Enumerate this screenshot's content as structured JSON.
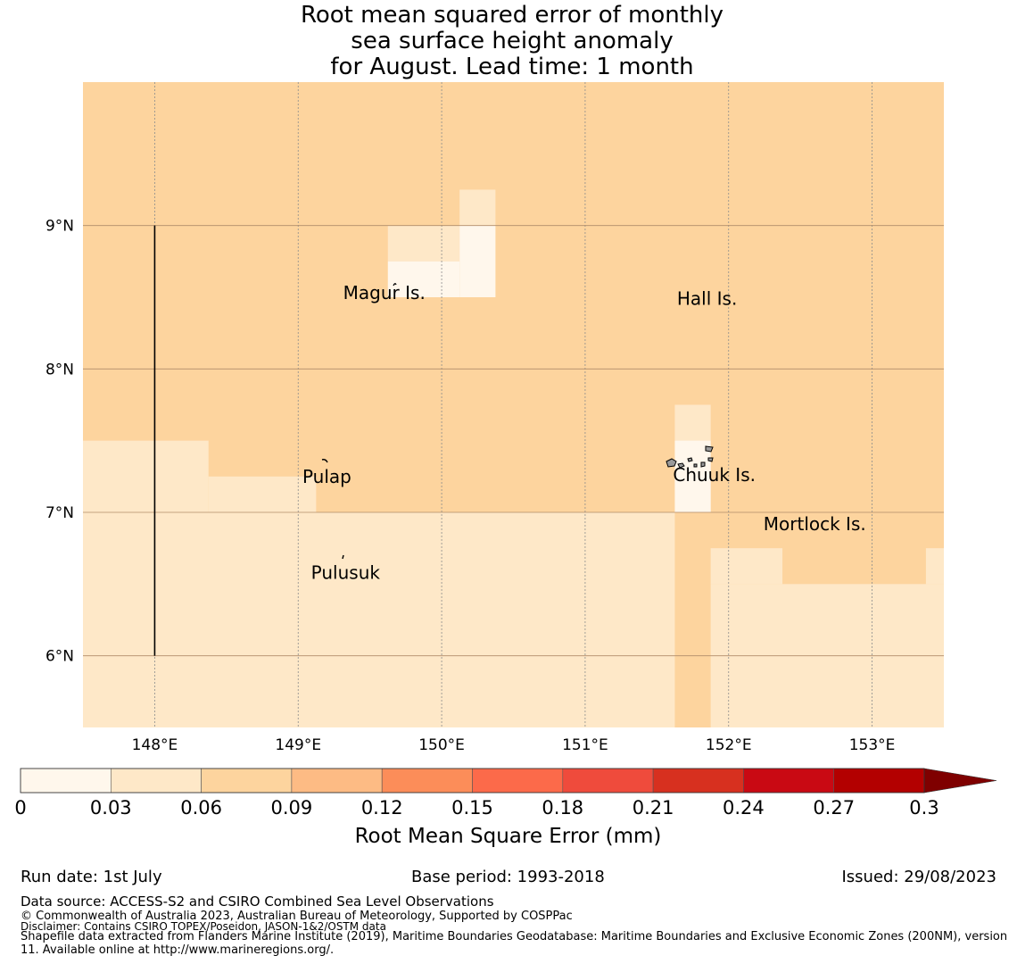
{
  "title_lines": [
    "Root mean squared error of monthly",
    "sea surface height anomaly",
    "for August. Lead time: 1 month"
  ],
  "map": {
    "lon_range": [
      147.5,
      153.5
    ],
    "lat_range": [
      5.5,
      10.0
    ],
    "lon_ticks": [
      148,
      149,
      150,
      151,
      152,
      153
    ],
    "lon_tick_labels": [
      "148°E",
      "149°E",
      "150°E",
      "151°E",
      "152°E",
      "153°E"
    ],
    "lat_ticks": [
      6,
      7,
      8,
      9
    ],
    "lat_tick_labels": [
      "6°N",
      "7°N",
      "8°N",
      "9°N"
    ],
    "grid": true,
    "base_class_color": "#fdd49e",
    "regions": [
      {
        "class_color": "#fee8c8",
        "lon": [
          147.5,
          148.375
        ],
        "lat": [
          7.0,
          7.5
        ]
      },
      {
        "class_color": "#fee8c8",
        "lon": [
          148.375,
          149.125
        ],
        "lat": [
          7.0,
          7.25
        ]
      },
      {
        "class_color": "#fee8c8",
        "lon": [
          147.5,
          151.625
        ],
        "lat": [
          5.5,
          7.0
        ]
      },
      {
        "class_color": "#fee8c8",
        "lon": [
          151.625,
          151.875
        ],
        "lat": [
          7.0,
          7.75
        ]
      },
      {
        "class_color": "#fff7ec",
        "lon": [
          151.625,
          151.875
        ],
        "lat": [
          7.0,
          7.5
        ]
      },
      {
        "class_color": "#fee8c8",
        "lon": [
          151.875,
          153.5
        ],
        "lat": [
          5.5,
          6.5
        ]
      },
      {
        "class_color": "#fee8c8",
        "lon": [
          151.875,
          152.375
        ],
        "lat": [
          6.5,
          6.75
        ]
      },
      {
        "class_color": "#fee8c8",
        "lon": [
          153.375,
          153.5
        ],
        "lat": [
          6.5,
          6.75
        ]
      },
      {
        "class_color": "#fee8c8",
        "lon": [
          149.625,
          150.125
        ],
        "lat": [
          8.75,
          9.0
        ]
      },
      {
        "class_color": "#fee8c8",
        "lon": [
          150.125,
          150.375
        ],
        "lat": [
          9.0,
          9.25
        ]
      },
      {
        "class_color": "#fff7ec",
        "lon": [
          150.125,
          150.375
        ],
        "lat": [
          8.5,
          9.0
        ]
      },
      {
        "class_color": "#fff7ec",
        "lon": [
          149.625,
          150.125
        ],
        "lat": [
          8.5,
          8.75
        ]
      }
    ],
    "boundary_line": {
      "lon": 148.0,
      "lat": [
        6.0,
        9.0
      ]
    },
    "place_labels": [
      {
        "name": "Magur Is.",
        "lon": 149.6,
        "lat": 8.53
      },
      {
        "name": "Hall Is.",
        "lon": 151.85,
        "lat": 8.49
      },
      {
        "name": "Pulap",
        "lon": 149.2,
        "lat": 7.25
      },
      {
        "name": "Chuuk Is.",
        "lon": 151.9,
        "lat": 7.26
      },
      {
        "name": "Mortlock Is.",
        "lon": 152.6,
        "lat": 6.92
      },
      {
        "name": "Pulusuk",
        "lon": 149.33,
        "lat": 6.58
      }
    ]
  },
  "colorbar": {
    "label": "Root Mean Square Error (mm)",
    "ticks": [
      "0",
      "0.03",
      "0.06",
      "0.09",
      "0.12",
      "0.15",
      "0.18",
      "0.21",
      "0.24",
      "0.27",
      "0.3"
    ],
    "colors": [
      "#fff7ec",
      "#fee8c8",
      "#fdd49e",
      "#fdbb84",
      "#fc8d59",
      "#fc6a4a",
      "#ef4b3c",
      "#d7301f",
      "#c90913",
      "#b30000"
    ],
    "extend_color": "#7f0000"
  },
  "footer": {
    "run_date": "Run date: 1st July",
    "base_period": "Base period: 1993-2018",
    "issued": "Issued: 29/08/2023",
    "data_source": "Data source: ACCESS-S2 and CSIRO Combined Sea Level Observations",
    "copyright": "© Commonwealth of Australia 2023, Australian Bureau of Meteorology, Supported by COSPPac",
    "disclaimer": "Disclaimer: Contains CSIRO TOPEX/Poseidon, JASON-1&2/OSTM data",
    "shapefile": "Shapefile data extracted from Flanders Marine Institute (2019), Maritime Boundaries Geodatabase: Maritime Boundaries and Exclusive Economic Zones (200NM), version 11. Available online at http://www.marineregions.org/."
  }
}
